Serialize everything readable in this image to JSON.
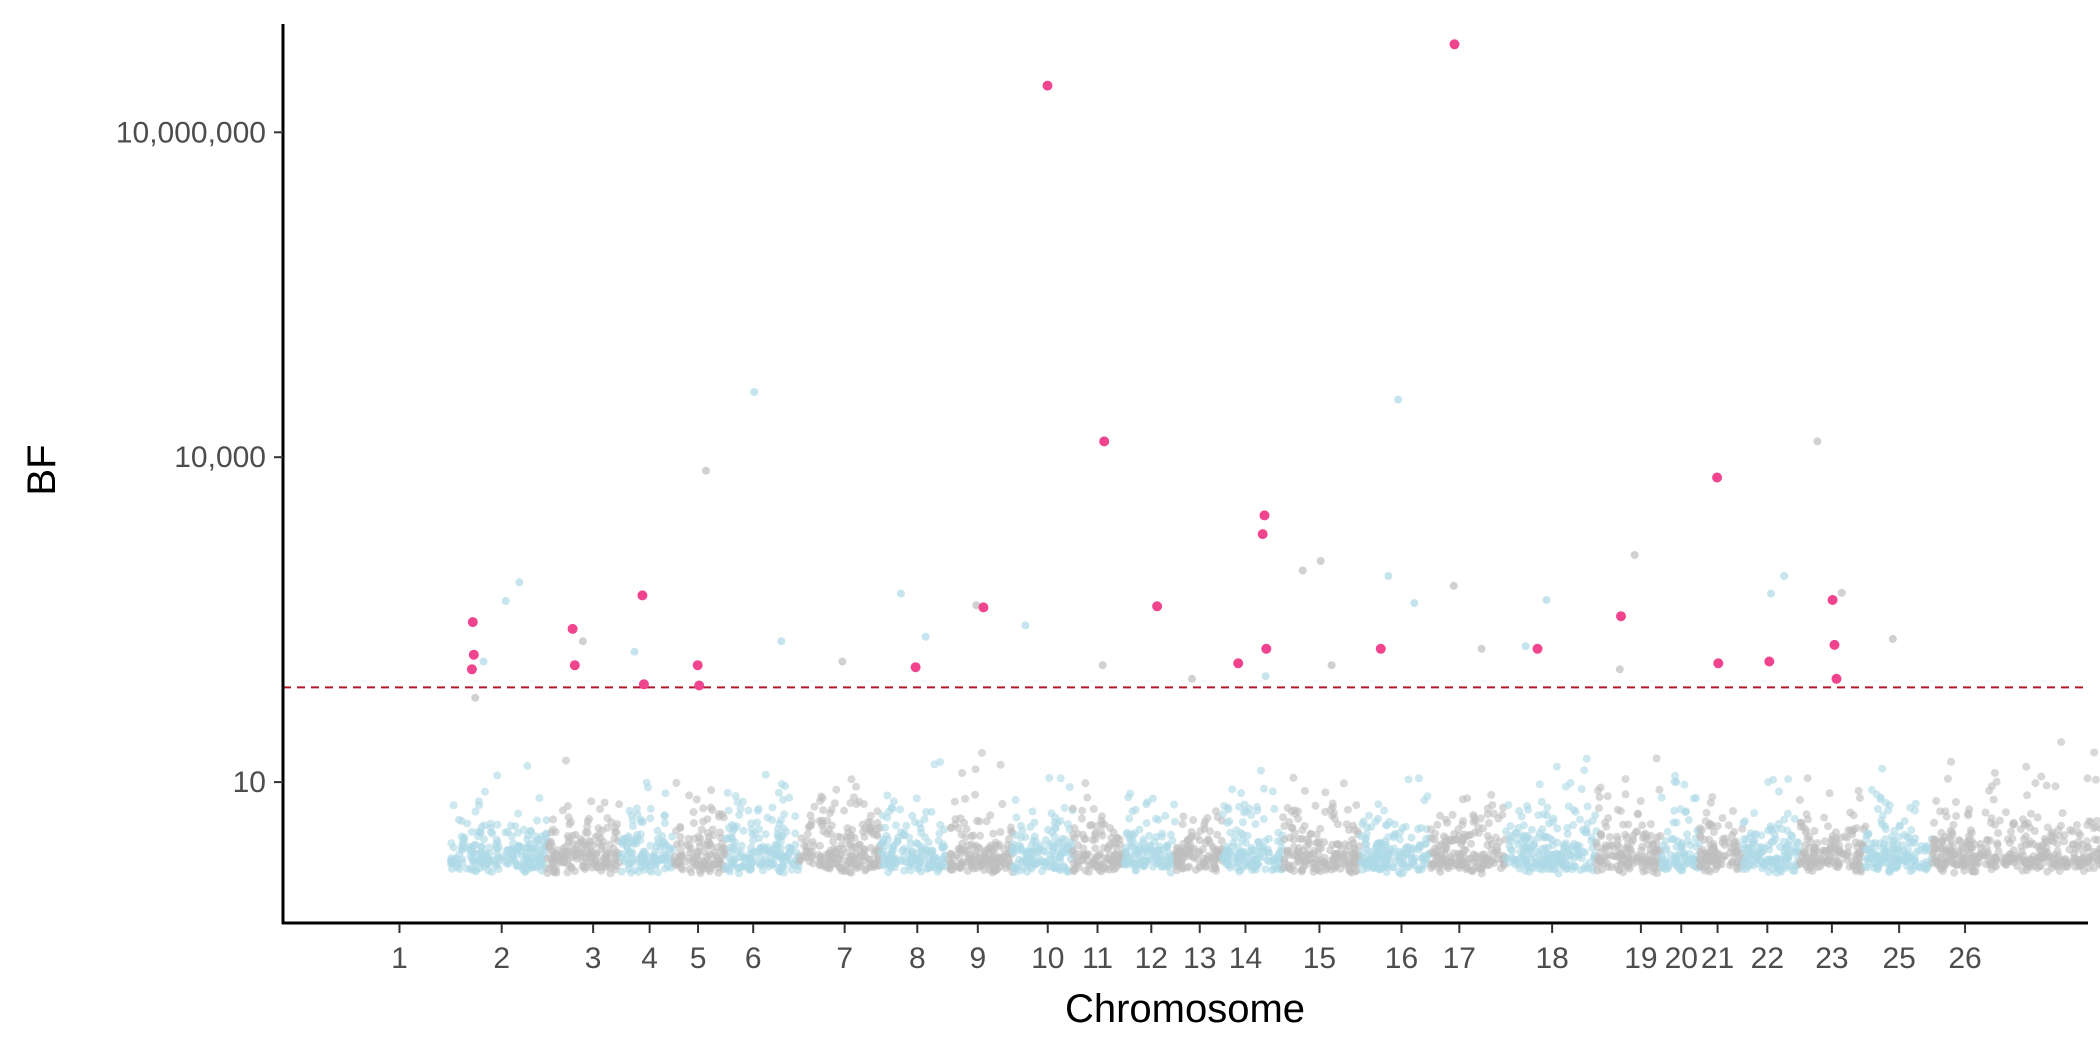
{
  "chart_data": {
    "type": "scatter",
    "title": "",
    "xlabel": "Chromosome",
    "ylabel": "BF",
    "y_scale": "log10",
    "ylim": [
      0.5,
      100000000
    ],
    "y_ticks": [
      {
        "value": 10,
        "label": "10"
      },
      {
        "value": 10000,
        "label": "10,000"
      },
      {
        "value": 10000000,
        "label": "10,000,000"
      }
    ],
    "threshold": {
      "value": 75,
      "color": "#b2182b",
      "style": "dashed"
    },
    "colors": {
      "odd": "#bebebe",
      "even": "#add8e6",
      "highlight": "#f0448f"
    },
    "background_density": {
      "baseline_bf": 1.6,
      "points_per_chromosome_unit": 230
    },
    "chromosomes": [
      {
        "label": "1",
        "tick": 297
      },
      {
        "label": "2",
        "tick": 373
      },
      {
        "label": "3",
        "tick": 441
      },
      {
        "label": "4",
        "tick": 483
      },
      {
        "label": "5",
        "tick": 519
      },
      {
        "label": "6",
        "tick": 560
      },
      {
        "label": "7",
        "tick": 628
      },
      {
        "label": "8",
        "tick": 682
      },
      {
        "label": "9",
        "tick": 727
      },
      {
        "label": "10",
        "tick": 779
      },
      {
        "label": "11",
        "tick": 816
      },
      {
        "label": "12",
        "tick": 856
      },
      {
        "label": "13",
        "tick": 892
      },
      {
        "label": "14",
        "tick": 926
      },
      {
        "label": "15",
        "tick": 981
      },
      {
        "label": "16",
        "tick": 1042
      },
      {
        "label": "17",
        "tick": 1085
      },
      {
        "label": "18",
        "tick": 1154
      },
      {
        "label": "19",
        "tick": 1220
      },
      {
        "label": "20",
        "tick": 1250
      },
      {
        "label": "21",
        "tick": 1277
      },
      {
        "label": "22",
        "tick": 1314
      },
      {
        "label": "23",
        "tick": 1362
      },
      {
        "label": "25",
        "tick": 1412
      },
      {
        "label": "26",
        "tick": 1461
      }
    ],
    "highlighted_points": [
      {
        "chr": "1",
        "bf": 150
      },
      {
        "chr": "1",
        "bf": 300
      },
      {
        "chr": "1",
        "bf": 110
      },
      {
        "chr": "3",
        "bf": 260
      },
      {
        "chr": "3",
        "bf": 120
      },
      {
        "chr": "4",
        "bf": 530
      },
      {
        "chr": "4",
        "bf": 80
      },
      {
        "chr": "5",
        "bf": 120
      },
      {
        "chr": "5",
        "bf": 78
      },
      {
        "chr": "8",
        "bf": 115
      },
      {
        "chr": "9",
        "bf": 410
      },
      {
        "chr": "10",
        "bf": 27000000
      },
      {
        "chr": "11",
        "bf": 14000
      },
      {
        "chr": "12",
        "bf": 420
      },
      {
        "chr": "14",
        "bf": 1950
      },
      {
        "chr": "14",
        "bf": 2900
      },
      {
        "chr": "14",
        "bf": 170
      },
      {
        "chr": "14",
        "bf": 125
      },
      {
        "chr": "16",
        "bf": 170
      },
      {
        "chr": "17",
        "bf": 65000000
      },
      {
        "chr": "18",
        "bf": 170
      },
      {
        "chr": "19",
        "bf": 340
      },
      {
        "chr": "21",
        "bf": 6500
      },
      {
        "chr": "21",
        "bf": 125
      },
      {
        "chr": "22",
        "bf": 130
      },
      {
        "chr": "23",
        "bf": 480
      },
      {
        "chr": "23",
        "bf": 185
      },
      {
        "chr": "23",
        "bf": 90
      }
    ],
    "notable_points": [
      {
        "chr": "1",
        "bf": 60,
        "color": "odd"
      },
      {
        "chr": "2",
        "bf": 470,
        "color": "even"
      },
      {
        "chr": "2",
        "bf": 130,
        "color": "even"
      },
      {
        "chr": "2",
        "bf": 700,
        "color": "even"
      },
      {
        "chr": "3",
        "bf": 200,
        "color": "odd"
      },
      {
        "chr": "4",
        "bf": 160,
        "color": "even"
      },
      {
        "chr": "5",
        "bf": 7500,
        "color": "odd"
      },
      {
        "chr": "6",
        "bf": 40000,
        "color": "even"
      },
      {
        "chr": "6",
        "bf": 200,
        "color": "even"
      },
      {
        "chr": "7",
        "bf": 130,
        "color": "odd"
      },
      {
        "chr": "8",
        "bf": 550,
        "color": "even"
      },
      {
        "chr": "8",
        "bf": 220,
        "color": "even"
      },
      {
        "chr": "9",
        "bf": 430,
        "color": "odd"
      },
      {
        "chr": "10",
        "bf": 280,
        "color": "even"
      },
      {
        "chr": "11",
        "bf": 120,
        "color": "odd"
      },
      {
        "chr": "13",
        "bf": 90,
        "color": "odd"
      },
      {
        "chr": "14",
        "bf": 95,
        "color": "even"
      },
      {
        "chr": "15",
        "bf": 1100,
        "color": "odd"
      },
      {
        "chr": "15",
        "bf": 900,
        "color": "odd"
      },
      {
        "chr": "15",
        "bf": 120,
        "color": "odd"
      },
      {
        "chr": "16",
        "bf": 800,
        "color": "even"
      },
      {
        "chr": "16",
        "bf": 450,
        "color": "even"
      },
      {
        "chr": "16",
        "bf": 34000,
        "color": "even"
      },
      {
        "chr": "17",
        "bf": 650,
        "color": "odd"
      },
      {
        "chr": "17",
        "bf": 170,
        "color": "odd"
      },
      {
        "chr": "18",
        "bf": 480,
        "color": "even"
      },
      {
        "chr": "18",
        "bf": 180,
        "color": "even"
      },
      {
        "chr": "19",
        "bf": 1250,
        "color": "odd"
      },
      {
        "chr": "19",
        "bf": 110,
        "color": "odd"
      },
      {
        "chr": "22",
        "bf": 800,
        "color": "even"
      },
      {
        "chr": "22",
        "bf": 550,
        "color": "even"
      },
      {
        "chr": "23",
        "bf": 14000,
        "color": "odd"
      },
      {
        "chr": "23",
        "bf": 560,
        "color": "odd"
      },
      {
        "chr": "25",
        "bf": 210,
        "color": "odd"
      },
      {
        "chr": "26",
        "bf": 45,
        "color": "even"
      }
    ]
  }
}
